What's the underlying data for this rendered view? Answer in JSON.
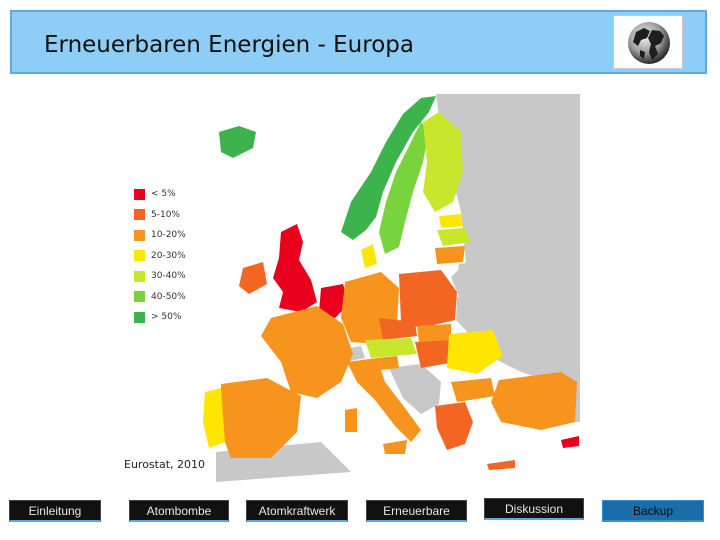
{
  "header": {
    "title": "Erneuerbaren Energien - Europa",
    "globe_icon": "globe-icon"
  },
  "map": {
    "legend": [
      {
        "label": "< 5%",
        "color": "#e8001c"
      },
      {
        "label": "5-10%",
        "color": "#f26522"
      },
      {
        "label": "10-20%",
        "color": "#f7941d"
      },
      {
        "label": "20-30%",
        "color": "#ffe600"
      },
      {
        "label": "30-40%",
        "color": "#c8e62c"
      },
      {
        "label": "40-50%",
        "color": "#78d43c"
      },
      {
        "label": "> 50%",
        "color": "#3cb44b"
      }
    ],
    "no_data_color": "#c8c8c8",
    "source": "Eurostat, 2010"
  },
  "nav": {
    "items": [
      {
        "label": "Einleitung"
      },
      {
        "label": "Atombombe"
      },
      {
        "label": "Atomkraftwerk"
      },
      {
        "label": "Erneuerbare"
      },
      {
        "label": "Diskussion"
      },
      {
        "label": "Backup"
      }
    ]
  }
}
